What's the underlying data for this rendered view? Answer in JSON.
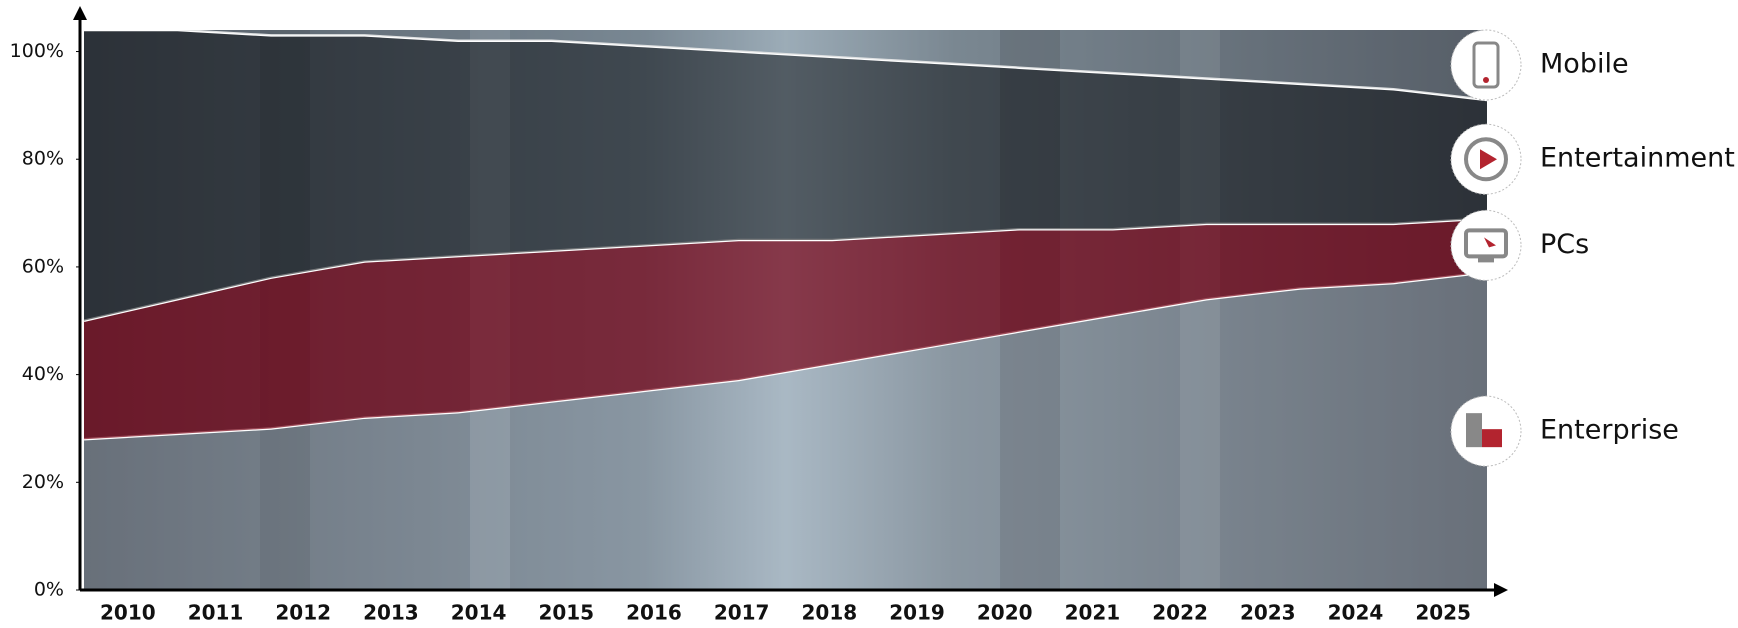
{
  "chart_data": {
    "type": "stacked_area",
    "categories": [
      "2010",
      "2011",
      "2012",
      "2013",
      "2014",
      "2015",
      "2016",
      "2017",
      "2018",
      "2019",
      "2020",
      "2021",
      "2022",
      "2023",
      "2024",
      "2025"
    ],
    "series": [
      {
        "name": "Enterprise",
        "color": "rgba(190,195,200,0.35)",
        "values": [
          28,
          29,
          30,
          32,
          33,
          35,
          37,
          39,
          42,
          45,
          48,
          51,
          54,
          56,
          57,
          59
        ]
      },
      {
        "name": "PCs",
        "color": "rgba(125,10,28,0.72)",
        "values": [
          22,
          25,
          28,
          29,
          29,
          28,
          27,
          26,
          23,
          21,
          19,
          16,
          14,
          12,
          11,
          10
        ]
      },
      {
        "name": "Entertainment",
        "color": "rgba(35,38,42,0.62)",
        "values": [
          54,
          50,
          45,
          42,
          40,
          39,
          37,
          35,
          34,
          32,
          30,
          29,
          27,
          26,
          25,
          22
        ]
      },
      {
        "name": "Mobile",
        "color": "rgba(150,155,160,0.3)",
        "values": [
          0,
          0,
          1,
          1,
          2,
          2,
          3,
          4,
          5,
          6,
          7,
          8,
          9,
          10,
          11,
          13
        ]
      }
    ],
    "ylim": [
      0,
      104
    ],
    "yticks": [
      {
        "value": 0,
        "label": "0%"
      },
      {
        "value": 20,
        "label": "20%"
      },
      {
        "value": 40,
        "label": "40%"
      },
      {
        "value": 60,
        "label": "60%"
      },
      {
        "value": 80,
        "label": "80%"
      },
      {
        "value": 100,
        "label": "100%"
      }
    ]
  }
}
